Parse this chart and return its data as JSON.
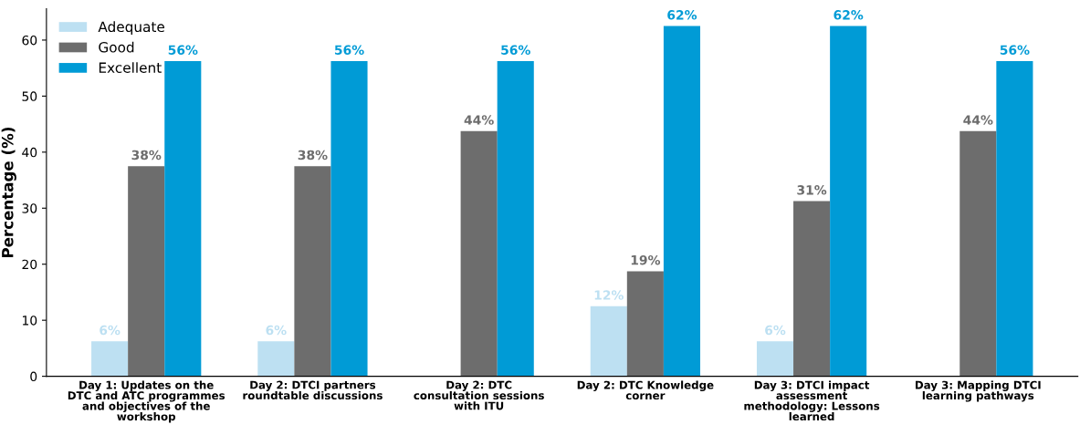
{
  "chart_data": {
    "type": "bar",
    "ylabel": "Percentage (%)",
    "categories": [
      "Day 1: Updates on the\nDTC and ATC programmes\nand objectives of the\nworkshop",
      "Day 2: DTCI partners\nroundtable discussions",
      "Day 2: DTC\nconsultation sessions\nwith ITU",
      "Day 2: DTC Knowledge\ncorner",
      "Day 3: DTCI impact\nassessment\nmethodology: Lessons\nlearned",
      "Day 3: Mapping DTCI\nlearning pathways"
    ],
    "series": [
      {
        "name": "Adequate",
        "color": "#bde0f2",
        "values": [
          6.25,
          6.25,
          null,
          12.5,
          6.25,
          null
        ],
        "value_labels": [
          "6%",
          "6%",
          null,
          "12%",
          "6%",
          null
        ]
      },
      {
        "name": "Good",
        "color": "#6d6d6d",
        "values": [
          37.5,
          37.5,
          43.75,
          18.75,
          31.25,
          43.75
        ],
        "value_labels": [
          "38%",
          "38%",
          "44%",
          "19%",
          "31%",
          "44%"
        ]
      },
      {
        "name": "Excellent",
        "color": "#009bd6",
        "values": [
          56.25,
          56.25,
          56.25,
          62.5,
          62.5,
          56.25
        ],
        "value_labels": [
          "56%",
          "56%",
          "56%",
          "62%",
          "62%",
          "56%"
        ]
      }
    ],
    "ylim": [
      0,
      65.6
    ],
    "yticks": [
      0,
      10,
      20,
      30,
      40,
      50,
      60
    ],
    "grid": false,
    "legend": "top left"
  }
}
